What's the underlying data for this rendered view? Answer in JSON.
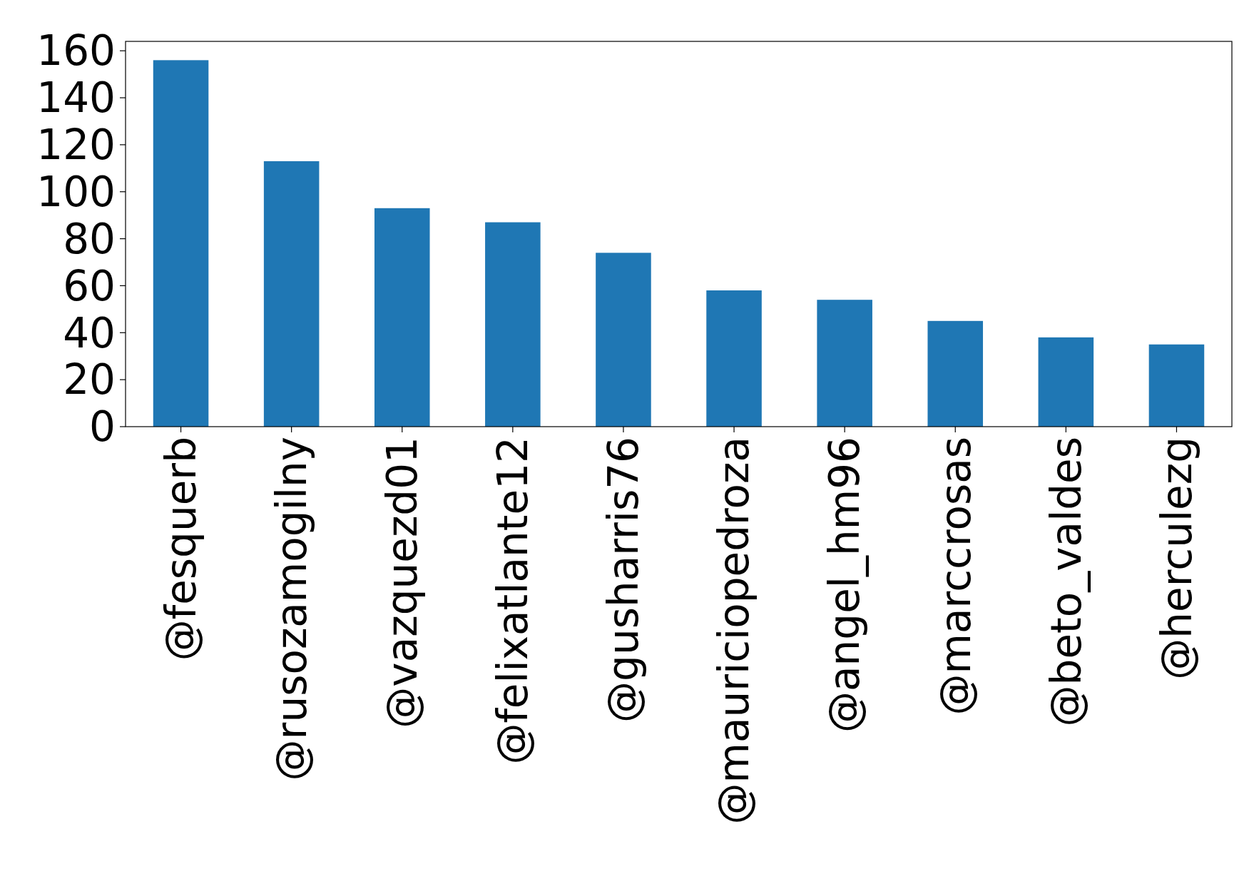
{
  "chart_data": {
    "type": "bar",
    "categories": [
      "@fesquerb",
      "@rusozamogilny",
      "@vazquezd01",
      "@felixatlante12",
      "@gusharris76",
      "@mauriciopedroza",
      "@angel_hm96",
      "@marccrosas",
      "@beto_valdes",
      "@herculezg"
    ],
    "values": [
      156,
      113,
      93,
      87,
      74,
      58,
      54,
      45,
      38,
      35
    ],
    "color": "#1f77b4",
    "ylim": [
      0,
      164
    ],
    "yticks": [
      0,
      20,
      40,
      60,
      80,
      100,
      120,
      140,
      160
    ],
    "grid": false
  }
}
